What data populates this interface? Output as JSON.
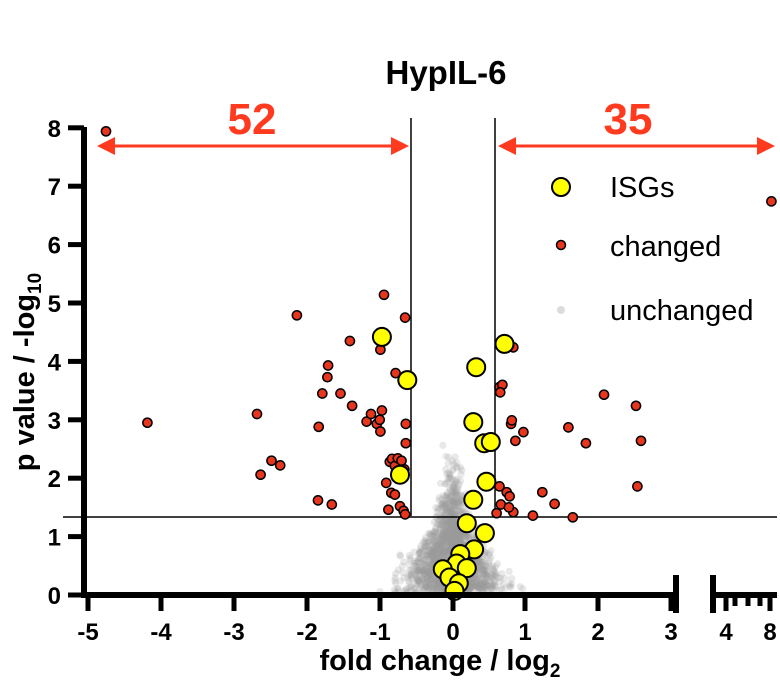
{
  "colors": {
    "isg_fill": "#ffff00",
    "changed_fill": "#e8361e",
    "unchanged_fill": "#9a9a9a",
    "arrow": "#ff3a1f",
    "axis": "#000000"
  },
  "chart_data": {
    "type": "scatter",
    "title": "HypIL-6",
    "xlabel": "fold change / log",
    "xlabel_sub": "2",
    "ylabel": "p value / -log",
    "ylabel_sub": "10",
    "xlim": [
      -5,
      8
    ],
    "ylim": [
      0,
      8
    ],
    "x_ticks": [
      "-5",
      "-4",
      "-3",
      "-2",
      "-1",
      "0",
      "1",
      "2",
      "3",
      "4",
      "8"
    ],
    "y_ticks": [
      "0",
      "1",
      "2",
      "3",
      "4",
      "5",
      "6",
      "7",
      "8"
    ],
    "x_axis_break": [
      3,
      4
    ],
    "thresholds": {
      "fold_left": -0.58,
      "fold_right": 0.58,
      "pvalue": 1.3
    },
    "counts": {
      "left": "52",
      "right": "35"
    },
    "legend": {
      "position": "top-right",
      "entries": [
        "ISGs",
        "changed",
        "unchanged"
      ]
    },
    "series": [
      {
        "name": "ISGs",
        "points": [
          [
            -0.98,
            4.42
          ],
          [
            -0.63,
            3.68
          ],
          [
            -0.73,
            2.06
          ],
          [
            0.32,
            3.9
          ],
          [
            0.71,
            4.3
          ],
          [
            0.28,
            2.96
          ],
          [
            0.43,
            2.6
          ],
          [
            0.52,
            2.62
          ],
          [
            0.46,
            1.94
          ],
          [
            0.28,
            1.63
          ],
          [
            0.19,
            1.23
          ],
          [
            0.44,
            1.06
          ],
          [
            0.29,
            0.78
          ],
          [
            0.1,
            0.7
          ],
          [
            0.05,
            0.54
          ],
          [
            0.19,
            0.46
          ],
          [
            -0.14,
            0.44
          ],
          [
            -0.05,
            0.3
          ],
          [
            0.08,
            0.2
          ],
          [
            0.02,
            0.07
          ]
        ]
      },
      {
        "name": "changed",
        "points": [
          [
            -4.78,
            7.94
          ],
          [
            -4.21,
            2.95
          ],
          [
            -2.15,
            4.79
          ],
          [
            -2.7,
            3.1
          ],
          [
            -2.65,
            2.06
          ],
          [
            -2.5,
            2.3
          ],
          [
            -2.38,
            2.22
          ],
          [
            -1.85,
            2.88
          ],
          [
            -1.8,
            3.45
          ],
          [
            -1.73,
            3.73
          ],
          [
            -1.72,
            3.93
          ],
          [
            -1.55,
            3.45
          ],
          [
            -1.42,
            4.35
          ],
          [
            -1.39,
            3.24
          ],
          [
            -1.19,
            2.97
          ],
          [
            -1.13,
            3.1
          ],
          [
            -1.05,
            2.93
          ],
          [
            -1.01,
            3.0
          ],
          [
            -0.98,
            3.16
          ],
          [
            -0.95,
            5.14
          ],
          [
            -0.87,
            2.28
          ],
          [
            -0.84,
            2.33
          ],
          [
            -0.8,
            2.21
          ],
          [
            -0.76,
            2.34
          ],
          [
            -0.71,
            2.3
          ],
          [
            -0.67,
            2.15
          ],
          [
            -0.92,
            1.92
          ],
          [
            -0.85,
            1.75
          ],
          [
            -0.8,
            1.72
          ],
          [
            -0.73,
            1.52
          ],
          [
            -0.68,
            1.44
          ],
          [
            -0.66,
            1.38
          ],
          [
            -0.89,
            1.46
          ],
          [
            -0.65,
            2.93
          ],
          [
            -0.65,
            2.6
          ],
          [
            -0.66,
            4.75
          ],
          [
            -1.0,
            4.2
          ],
          [
            -1.67,
            1.55
          ],
          [
            -1.86,
            1.62
          ],
          [
            -1.0,
            2.8
          ],
          [
            -0.79,
            3.8
          ],
          [
            0.64,
            3.56
          ],
          [
            0.68,
            3.6
          ],
          [
            0.65,
            3.47
          ],
          [
            0.83,
            4.24
          ],
          [
            0.8,
            2.93
          ],
          [
            0.81,
            2.99
          ],
          [
            0.97,
            2.79
          ],
          [
            0.86,
            2.64
          ],
          [
            0.64,
            1.86
          ],
          [
            0.74,
            1.76
          ],
          [
            0.78,
            1.69
          ],
          [
            0.83,
            1.42
          ],
          [
            0.66,
            1.55
          ],
          [
            0.77,
            1.5
          ],
          [
            1.23,
            1.76
          ],
          [
            1.4,
            1.56
          ],
          [
            1.59,
            2.87
          ],
          [
            1.83,
            2.6
          ],
          [
            1.65,
            1.33
          ],
          [
            2.08,
            3.43
          ],
          [
            2.52,
            3.24
          ],
          [
            2.59,
            2.64
          ],
          [
            2.54,
            1.86
          ],
          [
            1.1,
            1.36
          ],
          [
            0.6,
            1.4
          ],
          [
            7.95,
            6.74
          ]
        ]
      },
      {
        "name": "unchanged",
        "points": []
      }
    ]
  }
}
